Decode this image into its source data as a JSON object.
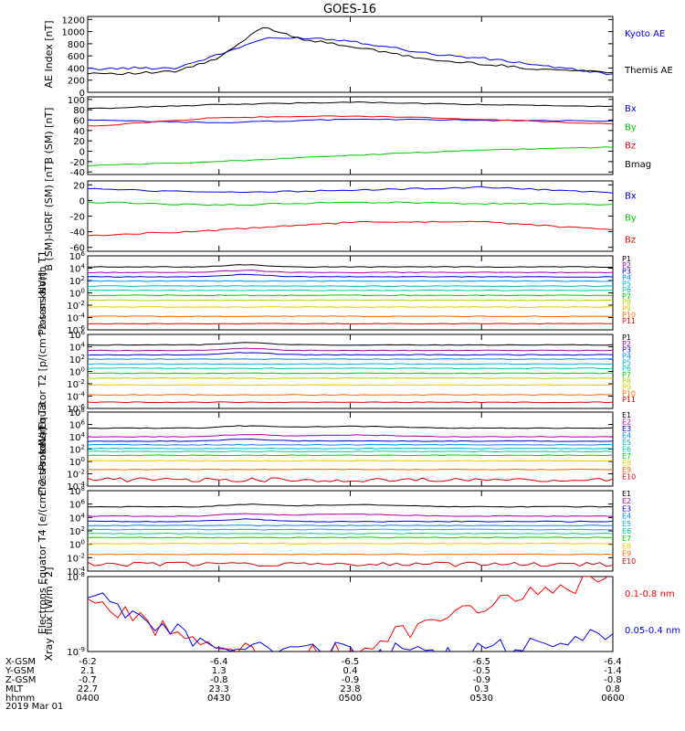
{
  "title": "GOES-16",
  "date_label": "2019 Mar 01",
  "colors": {
    "black": "#000000",
    "blue": "#0000ff",
    "green": "#00c800",
    "red": "#ff0000",
    "proton_channels": [
      "#000000",
      "#aa00aa",
      "#0000dd",
      "#0088ff",
      "#00b0e0",
      "#00c8a0",
      "#00cc00",
      "#b0d000",
      "#e8c800",
      "#ff6600",
      "#dd0000"
    ],
    "electron_channels": [
      "#000000",
      "#aa00aa",
      "#0000dd",
      "#0088ff",
      "#00b0e0",
      "#00c8a0",
      "#00cc00",
      "#e8c800",
      "#ff6600",
      "#dd0000"
    ]
  },
  "x_axis": {
    "ticks": [
      "0400",
      "0430",
      "0500",
      "0530",
      "0600"
    ],
    "row_labels": [
      "X-GSM",
      "Y-GSM",
      "Z-GSM",
      "MLT",
      "hhmm"
    ],
    "rows": [
      [
        "-6.2",
        "-6.4",
        "-6.5",
        "-6.5",
        "-6.4"
      ],
      [
        "2.1",
        "1.3",
        "0.4",
        "-0.5",
        "-1.4"
      ],
      [
        "-0.7",
        "-0.8",
        "-0.9",
        "-0.9",
        "-0.8"
      ],
      [
        "22.7",
        "23.3",
        "23.8",
        "0.3",
        "0.8"
      ]
    ]
  },
  "chart_data": [
    {
      "type": "line",
      "ylabel": "AE Index [nT]",
      "y_ticks": [
        "0",
        "200",
        "400",
        "600",
        "800",
        "1000",
        "1200"
      ],
      "ylim": [
        0,
        1250
      ],
      "x": [
        "0400",
        "0410",
        "0420",
        "0430",
        "0440",
        "0450",
        "0500",
        "0510",
        "0520",
        "0530",
        "0540",
        "0550",
        "0600"
      ],
      "series": [
        {
          "name": "Kyoto AE",
          "color": "blue",
          "values": [
            380,
            400,
            400,
            620,
            880,
            900,
            850,
            730,
            620,
            560,
            480,
            380,
            300
          ]
        },
        {
          "name": "Themis AE",
          "color": "black",
          "values": [
            320,
            310,
            340,
            560,
            1080,
            860,
            760,
            630,
            520,
            470,
            400,
            360,
            330
          ]
        }
      ]
    },
    {
      "type": "line",
      "ylabel": "B (SM) [nT]",
      "y_ticks": [
        "-40",
        "-20",
        "0",
        "20",
        "40",
        "60",
        "80",
        "100"
      ],
      "ylim": [
        -45,
        105
      ],
      "x": [
        "0400",
        "0430",
        "0500",
        "0530",
        "0600"
      ],
      "series": [
        {
          "name": "Bx",
          "color": "blue",
          "values": [
            60,
            55,
            62,
            60,
            58
          ]
        },
        {
          "name": "By",
          "color": "green",
          "values": [
            -28,
            -20,
            -8,
            2,
            8
          ]
        },
        {
          "name": "Bz",
          "color": "red",
          "values": [
            48,
            65,
            68,
            62,
            52
          ]
        },
        {
          "name": "Bmag",
          "color": "black",
          "values": [
            82,
            90,
            95,
            90,
            86
          ]
        }
      ]
    },
    {
      "type": "line",
      "ylabel": "B (SM)-IGRF (SM) [nT]",
      "y_ticks": [
        "-60",
        "-40",
        "-20",
        "0",
        "20"
      ],
      "ylim": [
        -65,
        25
      ],
      "x": [
        "0400",
        "0430",
        "0500",
        "0530",
        "0600"
      ],
      "series": [
        {
          "name": "Bx",
          "color": "blue",
          "values": [
            15,
            10,
            13,
            17,
            10
          ]
        },
        {
          "name": "By",
          "color": "green",
          "values": [
            -2,
            -6,
            -2,
            -4,
            -5
          ]
        },
        {
          "name": "Bz",
          "color": "red",
          "values": [
            -45,
            -38,
            -28,
            -27,
            -38
          ]
        }
      ]
    },
    {
      "type": "line",
      "ylabel": "Protons North T1",
      "y_ticks": [
        "10^6",
        "10^4",
        "10^2",
        "10^0",
        "10^-2",
        "10^-4",
        "10^-6"
      ],
      "log_range": [
        -6,
        6
      ],
      "channels": [
        "P1",
        "P2",
        "P3",
        "P4",
        "P5",
        "P6",
        "P7",
        "P8",
        "P9",
        "P10",
        "P11"
      ],
      "log_values": [
        4.2,
        3.3,
        2.6,
        1.9,
        1.1,
        0.4,
        -0.4,
        -1.2,
        -2.3,
        -3.8,
        -5.0
      ]
    },
    {
      "type": "line",
      "ylabel": "Protons Equator T2 [p/(cm^2-s-sr-keV)]",
      "y_ticks": [
        "10^6",
        "10^4",
        "10^2",
        "10^0",
        "10^-2",
        "10^-4",
        "10^-6"
      ],
      "log_range": [
        -6,
        6
      ],
      "channels": [
        "P1",
        "P2",
        "P3",
        "P4",
        "P5",
        "P6",
        "P7",
        "P8",
        "P9",
        "P10",
        "P11"
      ],
      "log_values": [
        4.3,
        3.4,
        2.7,
        2.0,
        1.2,
        0.5,
        -0.3,
        -1.1,
        -2.2,
        -3.8,
        -5.0
      ]
    },
    {
      "type": "line",
      "ylabel": "Electrons North T3",
      "y_ticks": [
        "10^8",
        "10^6",
        "10^4",
        "10^2",
        "10^0",
        "10^-2",
        "10^-4"
      ],
      "log_range": [
        -4,
        8
      ],
      "channels": [
        "E1",
        "E2",
        "E3",
        "E4",
        "E5",
        "E6",
        "E7",
        "E8",
        "E9",
        "E10"
      ],
      "log_values": [
        5.4,
        4.0,
        3.3,
        2.7,
        2.1,
        1.6,
        1.0,
        0.1,
        -1.3,
        -3.0
      ]
    },
    {
      "type": "line",
      "ylabel": "Electrons Equator T4 [e/(cm^2-s-sr-keV)]",
      "y_ticks": [
        "10^8",
        "10^6",
        "10^4",
        "10^2",
        "10^0",
        "10^-2",
        "10^-4"
      ],
      "log_range": [
        -4,
        8
      ],
      "channels": [
        "E1",
        "E2",
        "E3",
        "E4",
        "E5",
        "E6",
        "E7",
        "E8",
        "E9",
        "E10"
      ],
      "log_values": [
        5.6,
        4.2,
        3.4,
        2.8,
        2.2,
        1.6,
        1.0,
        0.1,
        -1.5,
        -3.0
      ]
    },
    {
      "type": "line",
      "ylabel": "Xray flux [W/m^2]",
      "y_ticks": [
        "10^-8",
        "10^-9"
      ],
      "log_range": [
        -9,
        -8
      ],
      "x": [
        "0400",
        "0430",
        "0500",
        "0530",
        "0600"
      ],
      "series": [
        {
          "name": "0.1-0.8 nm",
          "color": "red",
          "values": [
            -8.3,
            -9.0,
            -9.0,
            -8.4,
            -8.0
          ]
        },
        {
          "name": "0.05-0.4 nm",
          "color": "blue",
          "values": [
            -8.2,
            -9.0,
            -9.0,
            -9.0,
            -8.7
          ]
        }
      ]
    }
  ]
}
